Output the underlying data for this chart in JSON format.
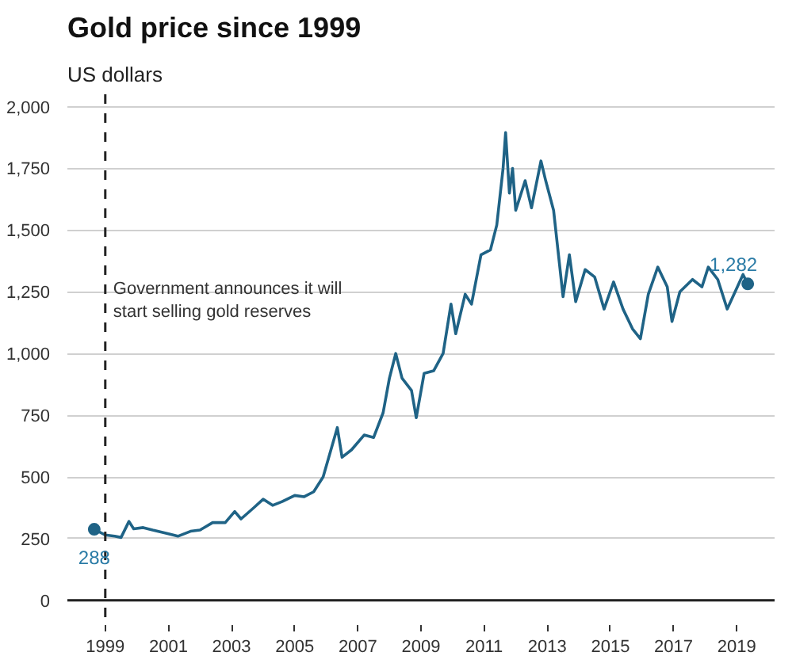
{
  "chart_data": {
    "type": "line",
    "title": "Gold price since 1999",
    "subtitle": "US dollars",
    "xlim": [
      1997.8,
      2020.2
    ],
    "xticks": [
      1999,
      2001,
      2003,
      2005,
      2007,
      2009,
      2011,
      2013,
      2015,
      2017,
      2019
    ],
    "ylim": [
      -100,
      2050
    ],
    "yticks": [
      0,
      250,
      500,
      750,
      {
        "value": 1000,
        "label": "1,000"
      },
      {
        "value": 1250,
        "label": "1,250"
      },
      {
        "value": 1500,
        "label": "1,500"
      },
      {
        "value": 1750,
        "label": "1,750"
      },
      {
        "value": 2000,
        "label": "2,000"
      }
    ],
    "grid": "y",
    "marker": "none",
    "line_style": "solid",
    "ref_lines": [
      {
        "axis": "x",
        "value": 1999,
        "label": "Government announces it will\nstart selling gold reserves",
        "color": "#222222",
        "line_style": "dashed"
      }
    ],
    "series": [
      {
        "color": "#1f6386",
        "x": [
          1998.65,
          1999.0,
          1999.3,
          1999.5,
          1999.75,
          1999.9,
          2000.2,
          2000.5,
          2001.0,
          2001.3,
          2001.7,
          2002.0,
          2002.4,
          2002.8,
          2003.1,
          2003.3,
          2003.7,
          2004.0,
          2004.3,
          2004.6,
          2005.0,
          2005.3,
          2005.6,
          2005.9,
          2006.35,
          2006.5,
          2006.8,
          2007.2,
          2007.5,
          2007.8,
          2008.0,
          2008.2,
          2008.4,
          2008.7,
          2008.85,
          2009.1,
          2009.4,
          2009.7,
          2009.95,
          2010.1,
          2010.4,
          2010.6,
          2010.9,
          2011.2,
          2011.4,
          2011.6,
          2011.68,
          2011.8,
          2011.9,
          2012.0,
          2012.3,
          2012.5,
          2012.8,
          2012.95,
          2013.2,
          2013.5,
          2013.7,
          2013.9,
          2014.2,
          2014.5,
          2014.8,
          2015.1,
          2015.4,
          2015.7,
          2015.95,
          2016.2,
          2016.5,
          2016.8,
          2016.95,
          2017.2,
          2017.6,
          2017.9,
          2018.1,
          2018.4,
          2018.7,
          2018.95,
          2019.2,
          2019.35
        ],
        "values": [
          288,
          265,
          260,
          255,
          320,
          290,
          295,
          285,
          270,
          260,
          280,
          285,
          315,
          315,
          360,
          330,
          375,
          410,
          385,
          400,
          425,
          420,
          440,
          500,
          700,
          580,
          610,
          670,
          660,
          760,
          900,
          1000,
          900,
          850,
          740,
          920,
          930,
          1000,
          1200,
          1080,
          1240,
          1200,
          1400,
          1420,
          1520,
          1750,
          1895,
          1650,
          1750,
          1580,
          1700,
          1590,
          1780,
          1700,
          1580,
          1230,
          1400,
          1210,
          1340,
          1310,
          1180,
          1290,
          1180,
          1100,
          1060,
          1240,
          1350,
          1270,
          1130,
          1250,
          1300,
          1270,
          1350,
          1300,
          1180,
          1250,
          1320,
          1282
        ],
        "value_labels": [
          "288",
          null,
          null,
          null,
          null,
          null,
          null,
          null,
          null,
          null,
          null,
          null,
          null,
          null,
          null,
          null,
          null,
          null,
          null,
          null,
          null,
          null,
          null,
          null,
          null,
          null,
          null,
          null,
          null,
          null,
          null,
          null,
          null,
          null,
          null,
          null,
          null,
          null,
          null,
          null,
          null,
          null,
          null,
          null,
          null,
          null,
          null,
          null,
          null,
          null,
          null,
          null,
          null,
          null,
          null,
          null,
          null,
          null,
          null,
          null,
          null,
          null,
          null,
          null,
          null,
          null,
          null,
          null,
          null,
          null,
          null,
          null,
          null,
          null,
          null,
          null,
          null,
          "1,282"
        ]
      }
    ]
  }
}
